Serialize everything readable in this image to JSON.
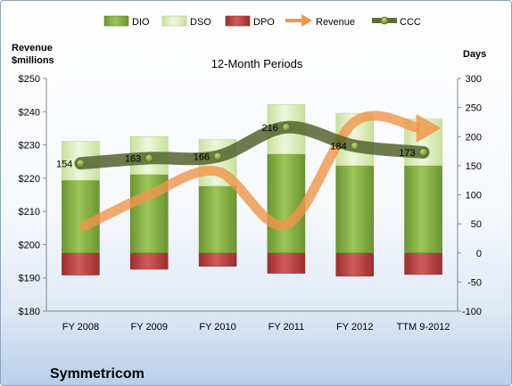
{
  "chart_data": {
    "type": "bar",
    "title": "12-Month Periods",
    "left_axis_label_line1": "Revenue",
    "left_axis_label_line2": "$millions",
    "right_axis_label": "Days",
    "footer": "Symmetricom",
    "categories": [
      "FY 2008",
      "FY 2009",
      "FY 2010",
      "FY 2011",
      "FY 2012",
      "TTM 9-2012"
    ],
    "left_ylim": [
      180,
      250
    ],
    "left_ticks": [
      "$180",
      "$190",
      "$200",
      "$210",
      "$220",
      "$230",
      "$240",
      "$250"
    ],
    "right_ylim": [
      -100,
      300
    ],
    "right_ticks": [
      "-100",
      "-50",
      "0",
      "50",
      "100",
      "150",
      "200",
      "250",
      "300"
    ],
    "legend": [
      "DIO",
      "DSO",
      "DPO",
      "Revenue",
      "CCC"
    ],
    "series": [
      {
        "name": "DIO",
        "axis": "right",
        "values": [
          125,
          135,
          115,
          170,
          150,
          150
        ],
        "color": "#7aa43a"
      },
      {
        "name": "DSO",
        "axis": "right",
        "values": [
          67,
          65,
          80,
          85,
          90,
          80
        ],
        "color": "#d8ebb0"
      },
      {
        "name": "DPO",
        "axis": "right",
        "values": [
          -38,
          -28,
          -23,
          -35,
          -40,
          -37
        ],
        "color": "#b5403f"
      },
      {
        "name": "Revenue",
        "axis": "left",
        "values": [
          205,
          215,
          222,
          206,
          237,
          235
        ],
        "color": "#f0954a"
      },
      {
        "name": "CCC",
        "axis": "right",
        "values": [
          154,
          163,
          166,
          216,
          184,
          173
        ],
        "labels": [
          "154",
          "163",
          "166",
          "216",
          "184",
          "173"
        ],
        "color": "#5e6e35"
      }
    ],
    "grid": false,
    "legend_position": "top"
  }
}
